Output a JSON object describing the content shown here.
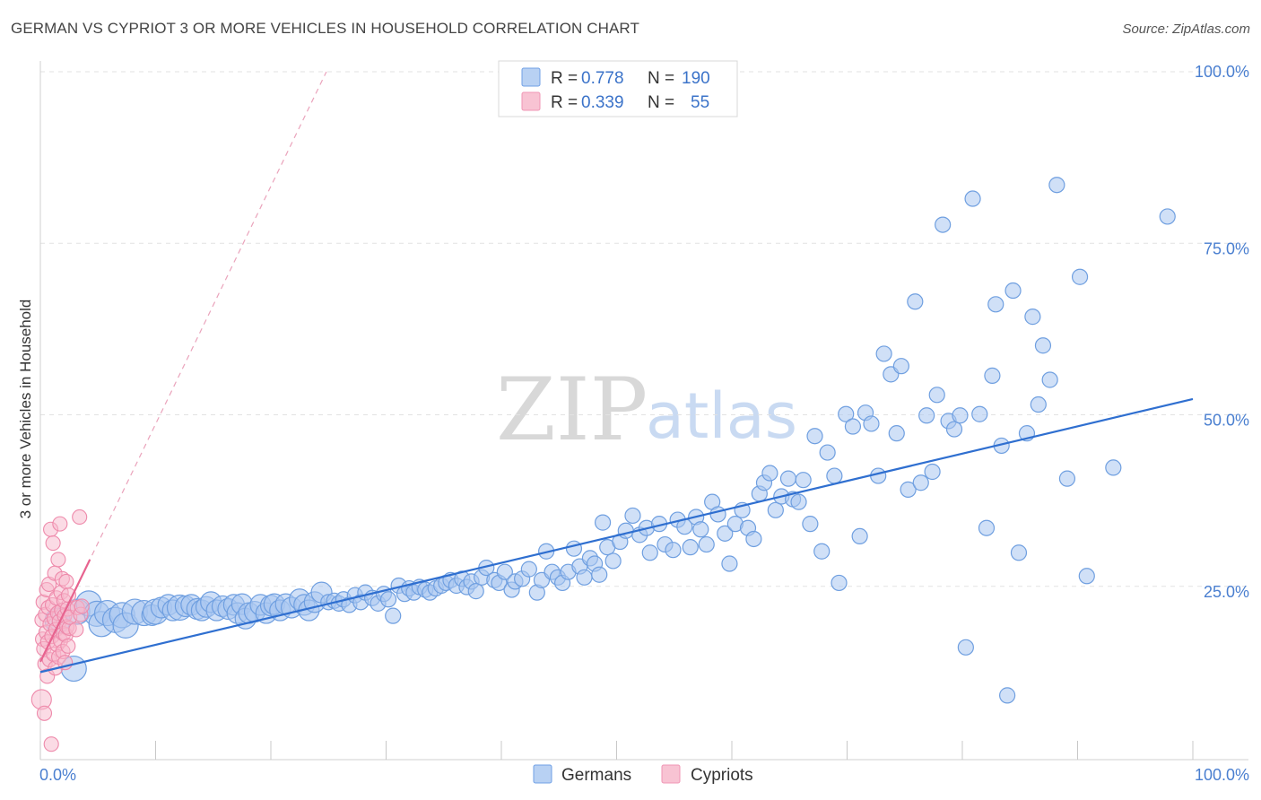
{
  "header": {
    "title": "GERMAN VS CYPRIOT 3 OR MORE VEHICLES IN HOUSEHOLD CORRELATION CHART",
    "source": "Source: ZipAtlas.com"
  },
  "watermark": {
    "zip": "ZIP",
    "atlas": "atlas"
  },
  "legend": {
    "rows": [
      {
        "r_label": "R =",
        "r_value": "0.778",
        "n_label": "N =",
        "n_value": "190",
        "color": "#6fa0e6"
      },
      {
        "r_label": "R =",
        "r_value": "0.339",
        "n_label": "N =",
        "n_value": "55",
        "color": "#f096b4"
      }
    ]
  },
  "bottom_legend": {
    "germans": "Germans",
    "cypriots": "Cypriots"
  },
  "colors": {
    "german_fill": "#a9c6f0",
    "german_stroke": "#6f9fe0",
    "german_line": "#2f6fd0",
    "cypriot_fill": "#f7b7cb",
    "cypriot_stroke": "#ee8aab",
    "cypriot_line": "#e7638f",
    "grid": "#e2e2e2",
    "axis_text": "#4a7fd0"
  },
  "chart_data": {
    "type": "scatter",
    "title": "GERMAN VS CYPRIOT 3 OR MORE VEHICLES IN HOUSEHOLD CORRELATION CHART",
    "xlabel": "",
    "ylabel": "3 or more Vehicles in Household",
    "xlim": [
      0,
      100
    ],
    "ylim": [
      0,
      100
    ],
    "x_tick_labels": [
      "0.0%",
      "100.0%"
    ],
    "y_ticks": [
      {
        "value": 25,
        "label": "25.0%"
      },
      {
        "value": 50,
        "label": "50.0%"
      },
      {
        "value": 75,
        "label": "75.0%"
      },
      {
        "value": 100,
        "label": "100.0%"
      }
    ],
    "grid": true,
    "legend_position": "top-center",
    "series": [
      {
        "name": "Germans",
        "r": 0.778,
        "n": 190,
        "trend": {
          "x": [
            0,
            100
          ],
          "y": [
            12.5,
            52.3
          ]
        },
        "points": [
          [
            1.5,
            20,
            3
          ],
          [
            2.9,
            13,
            3
          ],
          [
            3.2,
            21.3,
            3
          ],
          [
            4.2,
            22.5,
            3
          ],
          [
            4.9,
            21.0,
            3
          ],
          [
            5.3,
            19.5,
            3
          ],
          [
            5.8,
            21.1,
            3
          ],
          [
            6.5,
            20.1,
            3
          ],
          [
            7.1,
            20.8,
            3
          ],
          [
            7.4,
            19.3,
            3
          ],
          [
            8.2,
            21.3,
            3
          ],
          [
            9.0,
            21.1,
            3
          ],
          [
            9.7,
            20.8,
            2
          ],
          [
            10.0,
            21.3,
            3
          ],
          [
            10.5,
            21.9,
            2
          ],
          [
            11.1,
            22.3,
            2
          ],
          [
            11.5,
            21.5,
            2
          ],
          [
            12.1,
            21.9,
            3
          ],
          [
            12.6,
            22.1,
            2
          ],
          [
            13.1,
            22.3,
            2
          ],
          [
            13.6,
            21.7,
            2
          ],
          [
            14.0,
            21.5,
            2
          ],
          [
            14.4,
            22.0,
            2
          ],
          [
            14.8,
            22.7,
            2
          ],
          [
            15.3,
            21.5,
            2
          ],
          [
            15.8,
            22.1,
            2
          ],
          [
            16.3,
            21.7,
            2
          ],
          [
            16.8,
            22.3,
            2
          ],
          [
            17.1,
            21.1,
            2
          ],
          [
            17.5,
            22.4,
            2
          ],
          [
            17.8,
            20.3,
            2
          ],
          [
            18.1,
            21.1,
            2
          ],
          [
            18.6,
            21.3,
            2
          ],
          [
            19.1,
            22.3,
            2
          ],
          [
            19.6,
            21.1,
            2
          ],
          [
            20.0,
            22.2,
            2
          ],
          [
            20.3,
            22.4,
            2
          ],
          [
            20.8,
            21.5,
            2
          ],
          [
            21.3,
            22.4,
            2
          ],
          [
            21.8,
            21.9,
            2
          ],
          [
            22.5,
            23.1,
            2
          ],
          [
            22.9,
            22.3,
            2
          ],
          [
            23.3,
            21.5,
            2
          ],
          [
            23.8,
            22.7,
            2
          ],
          [
            24.4,
            24.1,
            2
          ],
          [
            25.0,
            22.7,
            1
          ],
          [
            25.5,
            22.9,
            1
          ],
          [
            25.9,
            22.5,
            1
          ],
          [
            26.3,
            23.1,
            1
          ],
          [
            26.8,
            22.3,
            1
          ],
          [
            27.3,
            23.7,
            1
          ],
          [
            27.8,
            22.7,
            1
          ],
          [
            28.2,
            24.1,
            1
          ],
          [
            28.8,
            23.3,
            1
          ],
          [
            29.3,
            22.5,
            1
          ],
          [
            29.8,
            23.9,
            1
          ],
          [
            30.2,
            23.1,
            1
          ],
          [
            30.6,
            20.7,
            1
          ],
          [
            31.1,
            25.1,
            1
          ],
          [
            31.6,
            23.9,
            1
          ],
          [
            32.0,
            24.7,
            1
          ],
          [
            32.4,
            24.1,
            1
          ],
          [
            32.9,
            24.9,
            1
          ],
          [
            33.4,
            24.5,
            1
          ],
          [
            33.8,
            24.1,
            1
          ],
          [
            34.3,
            24.7,
            1
          ],
          [
            34.8,
            25.1,
            1
          ],
          [
            35.2,
            25.5,
            1
          ],
          [
            35.6,
            25.9,
            1
          ],
          [
            36.1,
            25.1,
            1
          ],
          [
            36.6,
            26.1,
            1
          ],
          [
            37.0,
            24.9,
            1
          ],
          [
            37.4,
            25.7,
            1
          ],
          [
            37.8,
            24.3,
            1
          ],
          [
            38.3,
            26.3,
            1
          ],
          [
            38.7,
            27.7,
            1
          ],
          [
            39.4,
            25.9,
            1
          ],
          [
            39.8,
            25.5,
            1
          ],
          [
            40.3,
            27.1,
            1
          ],
          [
            40.9,
            24.5,
            1
          ],
          [
            41.2,
            25.7,
            1
          ],
          [
            41.8,
            26.1,
            1
          ],
          [
            42.4,
            27.5,
            1
          ],
          [
            43.1,
            24.1,
            1
          ],
          [
            43.5,
            25.9,
            1
          ],
          [
            43.9,
            30.1,
            1
          ],
          [
            44.4,
            27.1,
            1
          ],
          [
            44.9,
            26.3,
            1
          ],
          [
            45.3,
            25.5,
            1
          ],
          [
            45.8,
            27.1,
            1
          ],
          [
            46.3,
            30.5,
            1
          ],
          [
            46.8,
            27.9,
            1
          ],
          [
            47.2,
            26.3,
            1
          ],
          [
            47.7,
            29.1,
            1
          ],
          [
            48.1,
            28.3,
            1
          ],
          [
            48.5,
            26.7,
            1
          ],
          [
            48.8,
            34.3,
            1
          ],
          [
            49.2,
            30.7,
            1
          ],
          [
            49.7,
            28.7,
            1
          ],
          [
            50.3,
            31.5,
            1
          ],
          [
            50.8,
            33.1,
            1
          ],
          [
            51.4,
            35.3,
            1
          ],
          [
            52.0,
            32.5,
            1
          ],
          [
            52.6,
            33.5,
            1
          ],
          [
            52.9,
            29.9,
            1
          ],
          [
            53.7,
            34.1,
            1
          ],
          [
            54.2,
            31.1,
            1
          ],
          [
            54.9,
            30.3,
            1
          ],
          [
            55.3,
            34.7,
            1
          ],
          [
            55.9,
            33.7,
            1
          ],
          [
            56.4,
            30.7,
            1
          ],
          [
            56.9,
            35.1,
            1
          ],
          [
            57.3,
            33.3,
            1
          ],
          [
            57.8,
            31.1,
            1
          ],
          [
            58.3,
            37.3,
            1
          ],
          [
            58.8,
            35.5,
            1
          ],
          [
            59.4,
            32.7,
            1
          ],
          [
            59.8,
            28.3,
            1
          ],
          [
            60.3,
            34.1,
            1
          ],
          [
            60.9,
            36.1,
            1
          ],
          [
            61.4,
            33.5,
            1
          ],
          [
            61.9,
            31.9,
            1
          ],
          [
            62.4,
            38.5,
            1
          ],
          [
            62.8,
            40.1,
            1
          ],
          [
            63.3,
            41.5,
            1
          ],
          [
            63.8,
            36.1,
            1
          ],
          [
            64.3,
            38.1,
            1
          ],
          [
            64.9,
            40.7,
            1
          ],
          [
            65.3,
            37.7,
            1
          ],
          [
            65.8,
            37.3,
            1
          ],
          [
            66.2,
            40.5,
            1
          ],
          [
            66.8,
            34.1,
            1
          ],
          [
            67.2,
            46.9,
            1
          ],
          [
            67.8,
            30.1,
            1
          ],
          [
            68.3,
            44.5,
            1
          ],
          [
            68.9,
            41.1,
            1
          ],
          [
            69.3,
            25.5,
            1
          ],
          [
            69.9,
            50.1,
            1
          ],
          [
            70.5,
            48.3,
            1
          ],
          [
            71.1,
            32.3,
            1
          ],
          [
            71.6,
            50.3,
            1
          ],
          [
            72.1,
            48.7,
            1
          ],
          [
            72.7,
            41.1,
            1
          ],
          [
            73.2,
            58.9,
            1
          ],
          [
            73.8,
            55.9,
            1
          ],
          [
            74.3,
            47.3,
            1
          ],
          [
            74.7,
            57.1,
            1
          ],
          [
            75.3,
            39.1,
            1
          ],
          [
            75.9,
            66.5,
            1
          ],
          [
            76.4,
            40.1,
            1
          ],
          [
            76.9,
            49.9,
            1
          ],
          [
            77.4,
            41.7,
            1
          ],
          [
            77.8,
            52.9,
            1
          ],
          [
            78.3,
            77.7,
            1
          ],
          [
            78.8,
            49.1,
            1
          ],
          [
            79.3,
            47.9,
            1
          ],
          [
            79.8,
            49.9,
            1
          ],
          [
            80.3,
            16.1,
            1
          ],
          [
            80.9,
            81.5,
            1
          ],
          [
            81.5,
            50.1,
            1
          ],
          [
            82.1,
            33.5,
            1
          ],
          [
            82.6,
            55.7,
            1
          ],
          [
            82.9,
            66.1,
            1
          ],
          [
            83.4,
            45.5,
            1
          ],
          [
            83.9,
            9.1,
            1
          ],
          [
            84.4,
            68.1,
            1
          ],
          [
            84.9,
            29.9,
            1
          ],
          [
            85.6,
            47.3,
            1
          ],
          [
            86.1,
            64.3,
            1
          ],
          [
            86.6,
            51.5,
            1
          ],
          [
            87.0,
            60.1,
            1
          ],
          [
            87.6,
            55.1,
            1
          ],
          [
            88.2,
            83.5,
            1
          ],
          [
            89.1,
            40.7,
            1
          ],
          [
            90.2,
            70.1,
            1
          ],
          [
            90.8,
            26.5,
            1
          ],
          [
            93.1,
            42.3,
            1
          ],
          [
            97.8,
            78.9,
            1
          ]
        ]
      },
      {
        "name": "Cypriots",
        "r": 0.339,
        "n": 55,
        "trend": {
          "x": [
            0,
            4.3
          ],
          "y": [
            14.0,
            28.9
          ]
        },
        "points": [
          [
            0.1,
            8.5,
            2
          ],
          [
            0.15,
            20.1,
            1
          ],
          [
            0.2,
            17.3,
            1
          ],
          [
            0.25,
            22.7,
            1
          ],
          [
            0.3,
            15.9,
            1
          ],
          [
            0.35,
            6.5,
            1
          ],
          [
            0.4,
            13.7,
            1
          ],
          [
            0.45,
            20.9,
            1
          ],
          [
            0.5,
            18.3,
            1
          ],
          [
            0.55,
            24.5,
            1
          ],
          [
            0.6,
            11.9,
            1
          ],
          [
            0.65,
            16.9,
            1
          ],
          [
            0.7,
            21.9,
            1
          ],
          [
            0.75,
            25.3,
            1
          ],
          [
            0.8,
            14.3,
            1
          ],
          [
            0.85,
            19.5,
            1
          ],
          [
            0.9,
            33.3,
            1
          ],
          [
            0.95,
            2.0,
            1
          ],
          [
            1.0,
            17.7,
            1
          ],
          [
            1.05,
            22.3,
            1
          ],
          [
            1.1,
            31.3,
            1
          ],
          [
            1.15,
            15.1,
            1
          ],
          [
            1.2,
            20.3,
            1
          ],
          [
            1.25,
            26.9,
            1
          ],
          [
            1.3,
            13.1,
            1
          ],
          [
            1.35,
            18.7,
            1
          ],
          [
            1.4,
            23.3,
            1
          ],
          [
            1.45,
            16.5,
            1
          ],
          [
            1.5,
            21.1,
            1
          ],
          [
            1.55,
            28.9,
            1
          ],
          [
            1.6,
            14.7,
            1
          ],
          [
            1.65,
            19.9,
            1
          ],
          [
            1.7,
            34.1,
            1
          ],
          [
            1.75,
            17.1,
            1
          ],
          [
            1.8,
            24.1,
            1
          ],
          [
            1.85,
            21.5,
            1
          ],
          [
            1.9,
            26.1,
            1
          ],
          [
            1.95,
            15.5,
            1
          ],
          [
            2.0,
            18.1,
            1
          ],
          [
            2.05,
            22.9,
            1
          ],
          [
            2.1,
            20.7,
            1
          ],
          [
            2.15,
            13.9,
            1
          ],
          [
            2.2,
            17.9,
            1
          ],
          [
            2.25,
            25.7,
            1
          ],
          [
            2.3,
            19.1,
            1
          ],
          [
            2.35,
            21.7,
            1
          ],
          [
            2.4,
            16.3,
            1
          ],
          [
            2.45,
            23.7,
            1
          ],
          [
            2.5,
            18.9,
            1
          ],
          [
            2.55,
            20.5,
            1
          ],
          [
            3.1,
            18.7,
            1
          ],
          [
            3.2,
            21.9,
            1
          ],
          [
            3.4,
            35.1,
            1
          ],
          [
            3.5,
            20.9,
            1
          ],
          [
            3.6,
            22.1,
            1
          ]
        ]
      }
    ]
  }
}
